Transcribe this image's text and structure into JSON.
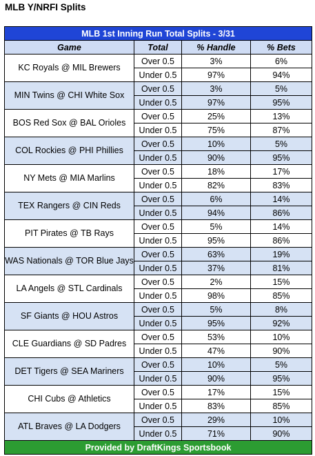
{
  "page": {
    "title": "MLB Y/NRFI Splits"
  },
  "table": {
    "banner": "MLB 1st Inning Run Total Splits - 3/31",
    "columns": [
      "Game",
      "Total",
      "% Handle",
      "% Bets"
    ],
    "games": [
      {
        "game": "KC Royals @ MIL Brewers",
        "rows": [
          {
            "total": "Over 0.5",
            "handle": "3%",
            "bets": "6%"
          },
          {
            "total": "Under 0.5",
            "handle": "97%",
            "bets": "94%"
          }
        ]
      },
      {
        "game": "MIN Twins @ CHI White Sox",
        "rows": [
          {
            "total": "Over 0.5",
            "handle": "3%",
            "bets": "5%"
          },
          {
            "total": "Under 0.5",
            "handle": "97%",
            "bets": "95%"
          }
        ]
      },
      {
        "game": "BOS Red Sox @ BAL Orioles",
        "rows": [
          {
            "total": "Over 0.5",
            "handle": "25%",
            "bets": "13%"
          },
          {
            "total": "Under 0.5",
            "handle": "75%",
            "bets": "87%"
          }
        ]
      },
      {
        "game": "COL Rockies @ PHI Phillies",
        "rows": [
          {
            "total": "Over 0.5",
            "handle": "10%",
            "bets": "5%"
          },
          {
            "total": "Under 0.5",
            "handle": "90%",
            "bets": "95%"
          }
        ]
      },
      {
        "game": "NY Mets @ MIA Marlins",
        "rows": [
          {
            "total": "Over 0.5",
            "handle": "18%",
            "bets": "17%"
          },
          {
            "total": "Under 0.5",
            "handle": "82%",
            "bets": "83%"
          }
        ]
      },
      {
        "game": "TEX Rangers @ CIN Reds",
        "rows": [
          {
            "total": "Over 0.5",
            "handle": "6%",
            "bets": "14%"
          },
          {
            "total": "Under 0.5",
            "handle": "94%",
            "bets": "86%"
          }
        ]
      },
      {
        "game": "PIT Pirates @ TB Rays",
        "rows": [
          {
            "total": "Over 0.5",
            "handle": "5%",
            "bets": "14%"
          },
          {
            "total": "Under 0.5",
            "handle": "95%",
            "bets": "86%"
          }
        ]
      },
      {
        "game": "WAS Nationals @ TOR Blue Jays",
        "rows": [
          {
            "total": "Over 0.5",
            "handle": "63%",
            "bets": "19%"
          },
          {
            "total": "Under 0.5",
            "handle": "37%",
            "bets": "81%"
          }
        ]
      },
      {
        "game": "LA Angels @ STL Cardinals",
        "rows": [
          {
            "total": "Over 0.5",
            "handle": "2%",
            "bets": "15%"
          },
          {
            "total": "Under 0.5",
            "handle": "98%",
            "bets": "85%"
          }
        ]
      },
      {
        "game": "SF Giants @ HOU Astros",
        "rows": [
          {
            "total": "Over 0.5",
            "handle": "5%",
            "bets": "8%"
          },
          {
            "total": "Under 0.5",
            "handle": "95%",
            "bets": "92%"
          }
        ]
      },
      {
        "game": "CLE Guardians @ SD Padres",
        "rows": [
          {
            "total": "Over 0.5",
            "handle": "53%",
            "bets": "10%"
          },
          {
            "total": "Under 0.5",
            "handle": "47%",
            "bets": "90%"
          }
        ]
      },
      {
        "game": "DET Tigers @ SEA Mariners",
        "rows": [
          {
            "total": "Over 0.5",
            "handle": "10%",
            "bets": "5%"
          },
          {
            "total": "Under 0.5",
            "handle": "90%",
            "bets": "95%"
          }
        ]
      },
      {
        "game": "CHI Cubs @ Athletics",
        "rows": [
          {
            "total": "Over 0.5",
            "handle": "17%",
            "bets": "15%"
          },
          {
            "total": "Under 0.5",
            "handle": "83%",
            "bets": "85%"
          }
        ]
      },
      {
        "game": "ATL Braves @ LA Dodgers",
        "rows": [
          {
            "total": "Over 0.5",
            "handle": "29%",
            "bets": "10%"
          },
          {
            "total": "Under 0.5",
            "handle": "71%",
            "bets": "90%"
          }
        ]
      }
    ],
    "footer": "Provided by DraftKings Sportsbook"
  },
  "colors": {
    "banner": "#1f45d6",
    "header_bg": "#cfdcf4",
    "alt_row": "#d6e2f4",
    "footer": "#2c9c32"
  }
}
